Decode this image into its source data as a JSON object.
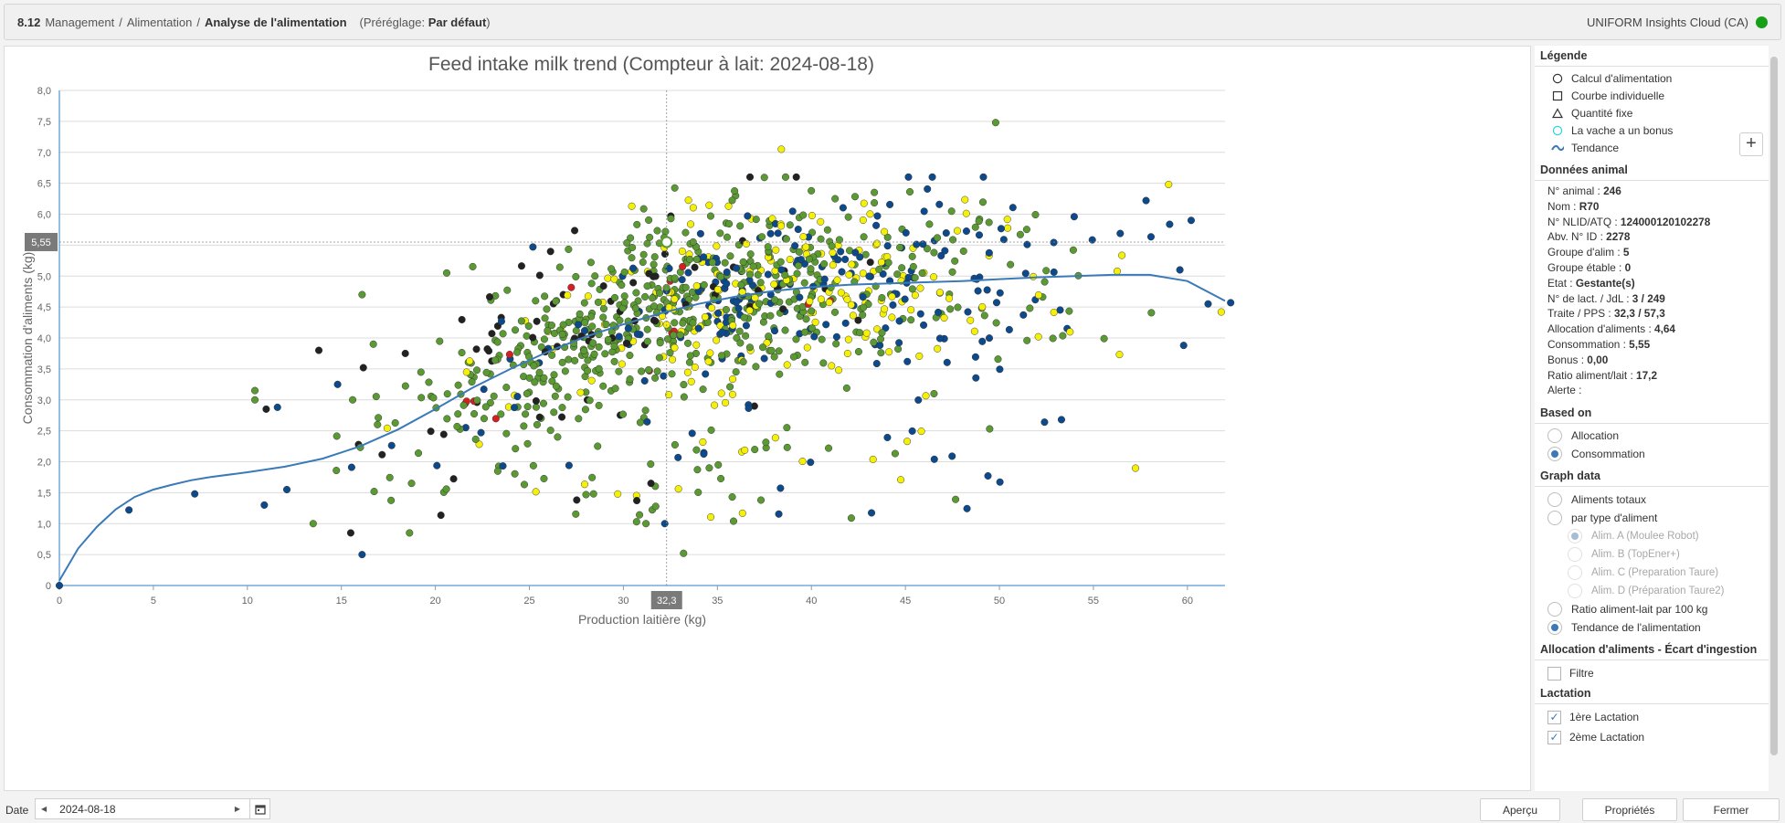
{
  "breadcrumb": {
    "version": "8.12",
    "items": [
      "Management",
      "Alimentation"
    ],
    "current": "Analyse de l'alimentation",
    "preset_label": "(Préréglage:",
    "preset_value": "Par défaut",
    "preset_close": ")"
  },
  "app": {
    "name": "UNIFORM Insights Cloud (CA)",
    "status_color": "#15a015"
  },
  "chart_data": {
    "type": "scatter",
    "title": "Feed intake milk trend (Compteur à lait: 2024-08-18)",
    "xlabel": "Production laitière (kg)",
    "ylabel": "Consommation d'aliments (kg)",
    "xlim": [
      0,
      62
    ],
    "ylim": [
      0,
      8
    ],
    "x_ticks": [
      "0",
      "5",
      "10",
      "15",
      "20",
      "25",
      "30",
      "35",
      "40",
      "45",
      "50",
      "55",
      "60"
    ],
    "y_ticks": [
      "0",
      "0,5",
      "1,0",
      "1,5",
      "2,0",
      "2,5",
      "3,0",
      "3,5",
      "4,0",
      "4,5",
      "5,0",
      "5,5",
      "6,0",
      "6,5",
      "7,0",
      "7,5",
      "8,0"
    ],
    "grid": true,
    "crosshair": {
      "x": 32.3,
      "y": 5.55,
      "x_label": "32,3",
      "y_label": "5,55"
    },
    "series_colors": {
      "green": "#5b9a32",
      "yellow": "#f5f008",
      "blue": "#0d4a8c",
      "black": "#222222",
      "red": "#d42020"
    },
    "trend": {
      "color": "#3a7ab8",
      "x": [
        0,
        1,
        2,
        3,
        4,
        5,
        6,
        7,
        8,
        10,
        12,
        14,
        16,
        18,
        20,
        22,
        24,
        26,
        28,
        30,
        32,
        34,
        36,
        38,
        40,
        42,
        44,
        46,
        48,
        50,
        52,
        54,
        56,
        58,
        60,
        62
      ],
      "y": [
        0.08,
        0.6,
        0.95,
        1.23,
        1.43,
        1.55,
        1.63,
        1.7,
        1.75,
        1.83,
        1.92,
        2.05,
        2.25,
        2.52,
        2.85,
        3.2,
        3.5,
        3.78,
        4.02,
        4.22,
        4.4,
        4.55,
        4.67,
        4.76,
        4.82,
        4.86,
        4.88,
        4.9,
        4.92,
        4.95,
        4.98,
        5.0,
        5.02,
        5.02,
        4.92,
        4.6
      ]
    },
    "selected_point": {
      "x": 32.3,
      "y": 5.55
    },
    "outlier_points": [
      {
        "x": 0,
        "y": 0,
        "c": "blue"
      },
      {
        "x": 3.7,
        "y": 1.22,
        "c": "blue"
      },
      {
        "x": 7.2,
        "y": 1.48,
        "c": "blue"
      },
      {
        "x": 10.9,
        "y": 1.3,
        "c": "blue"
      },
      {
        "x": 10.4,
        "y": 3.15,
        "c": "green"
      },
      {
        "x": 10.4,
        "y": 3.0,
        "c": "green"
      },
      {
        "x": 11.0,
        "y": 2.85,
        "c": "black"
      },
      {
        "x": 11.6,
        "y": 2.88,
        "c": "blue"
      },
      {
        "x": 12.1,
        "y": 1.55,
        "c": "blue"
      },
      {
        "x": 13.5,
        "y": 1.0,
        "c": "green"
      },
      {
        "x": 13.8,
        "y": 3.8,
        "c": "black"
      },
      {
        "x": 14.8,
        "y": 3.25,
        "c": "blue"
      },
      {
        "x": 15.6,
        "y": 3.0,
        "c": "green"
      },
      {
        "x": 16.1,
        "y": 4.7,
        "c": "green"
      },
      {
        "x": 16.1,
        "y": 0.5,
        "c": "blue"
      },
      {
        "x": 16.7,
        "y": 3.9,
        "c": "green"
      },
      {
        "x": 18.4,
        "y": 3.75,
        "c": "black"
      },
      {
        "x": 20.6,
        "y": 5.05,
        "c": "green"
      },
      {
        "x": 38.4,
        "y": 7.05,
        "c": "yellow"
      },
      {
        "x": 49.8,
        "y": 7.48,
        "c": "green"
      },
      {
        "x": 52.4,
        "y": 2.64,
        "c": "blue"
      },
      {
        "x": 53.3,
        "y": 2.68,
        "c": "blue"
      },
      {
        "x": 59.8,
        "y": 3.88,
        "c": "blue"
      },
      {
        "x": 61.1,
        "y": 4.55,
        "c": "blue"
      },
      {
        "x": 61.8,
        "y": 4.42,
        "c": "yellow"
      },
      {
        "x": 62.3,
        "y": 4.57,
        "c": "blue"
      },
      {
        "x": 33.2,
        "y": 0.52,
        "c": "green"
      },
      {
        "x": 32.2,
        "y": 1.0,
        "c": "blue"
      },
      {
        "x": 31.2,
        "y": 1.0,
        "c": "green"
      },
      {
        "x": 30.7,
        "y": 1.03,
        "c": "green"
      },
      {
        "x": 57.8,
        "y": 6.22,
        "c": "blue"
      },
      {
        "x": 59.0,
        "y": 6.48,
        "c": "yellow"
      },
      {
        "x": 60.2,
        "y": 5.9,
        "c": "blue"
      },
      {
        "x": 59.6,
        "y": 5.1,
        "c": "blue"
      }
    ]
  },
  "sidebar": {
    "legend_title": "Légende",
    "legend": [
      {
        "label": "Calcul d'alimentation",
        "icon": "circle-outline-icon"
      },
      {
        "label": "Courbe individuelle",
        "icon": "square-outline-icon"
      },
      {
        "label": "Quantité fixe",
        "icon": "triangle-outline-icon"
      },
      {
        "label": "La vache a un bonus",
        "icon": "cyan-circle-icon"
      },
      {
        "label": "Tendance",
        "icon": "trend-line-icon"
      }
    ],
    "animal_title": "Données animal",
    "animal": [
      {
        "k": "N° animal : ",
        "v": "246"
      },
      {
        "k": "Nom : ",
        "v": "R70"
      },
      {
        "k": "N° NLID/ATQ : ",
        "v": "124000120102278"
      },
      {
        "k": "Abv. N° ID : ",
        "v": "2278"
      },
      {
        "k": "Groupe d'alim : ",
        "v": "5"
      },
      {
        "k": "Groupe étable : ",
        "v": "0"
      },
      {
        "k": "Etat : ",
        "v": "Gestante(s)"
      },
      {
        "k": "N° de lact. / JdL : ",
        "v": "3 / 249"
      },
      {
        "k": "Traite / PPS : ",
        "v": "32,3 / 57,3"
      },
      {
        "k": "Allocation d'aliments : ",
        "v": "4,64"
      },
      {
        "k": "Consommation : ",
        "v": "5,55"
      },
      {
        "k": "Bonus : ",
        "v": "0,00"
      },
      {
        "k": "Ratio aliment/lait : ",
        "v": "17,2"
      },
      {
        "k": "Alerte : ",
        "v": ""
      }
    ],
    "based_on_title": "Based on",
    "based_on": [
      {
        "label": "Allocation",
        "selected": false
      },
      {
        "label": "Consommation",
        "selected": true
      }
    ],
    "graph_title": "Graph data",
    "graph": [
      {
        "label": "Aliments totaux",
        "selected": false,
        "sub": false
      },
      {
        "label": "par type d'aliment",
        "selected": false,
        "sub": false
      },
      {
        "label": "Alim. A (Moulee Robot)",
        "selected": true,
        "sub": true
      },
      {
        "label": "Alim. B (TopEner+)",
        "selected": false,
        "sub": true
      },
      {
        "label": "Alim. C (Preparation Taure)",
        "selected": false,
        "sub": true
      },
      {
        "label": "Alim. D (Préparation Taure2)",
        "selected": false,
        "sub": true
      },
      {
        "label": "Ratio aliment-lait par 100 kg",
        "selected": false,
        "sub": false
      },
      {
        "label": "Tendance de l'alimentation",
        "selected": true,
        "sub": false
      }
    ],
    "allocation_title": "Allocation d'aliments - Écart d'ingestion",
    "filter_label": "Filtre",
    "lactation_title": "Lactation",
    "lactation": [
      {
        "label": "1ère Lactation",
        "checked": true
      },
      {
        "label": "2ème Lactation",
        "checked": true
      }
    ]
  },
  "bottom": {
    "date_label": "Date",
    "date_value": "2024-08-18",
    "preview": "Aperçu",
    "properties": "Propriétés",
    "close": "Fermer"
  }
}
